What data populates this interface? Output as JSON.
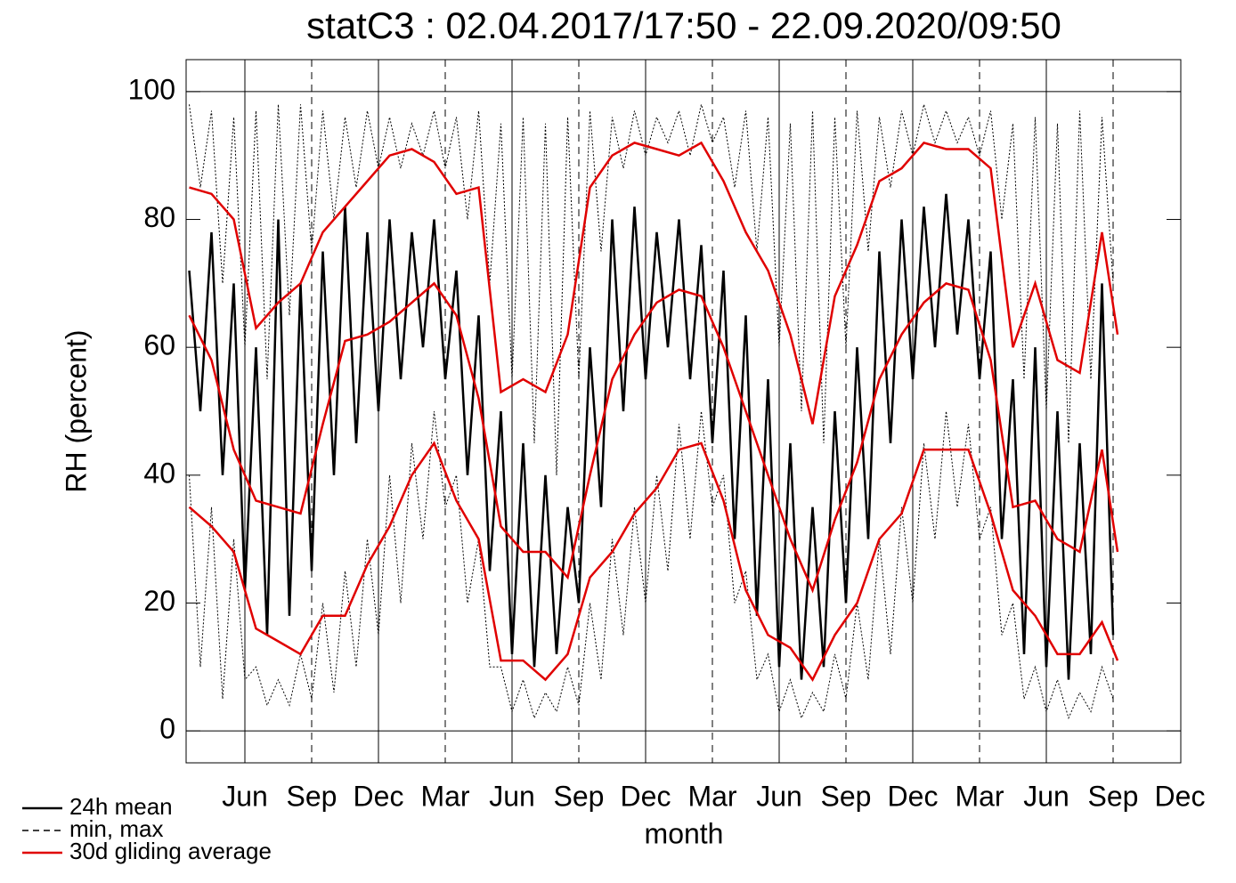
{
  "chart_data": {
    "type": "line",
    "title": "statC3 : 02.04.2017/17:50 - 22.09.2020/09:50",
    "y_label": "RH (percent)",
    "x_label": "month",
    "xlim": [
      2.36,
      47.04
    ],
    "xticks": [
      {
        "value": 5,
        "label": "Jun"
      },
      {
        "value": 8,
        "label": "Sep"
      },
      {
        "value": 11,
        "label": "Dec"
      },
      {
        "value": 14,
        "label": "Mar"
      },
      {
        "value": 17,
        "label": "Jun"
      },
      {
        "value": 20,
        "label": "Sep"
      },
      {
        "value": 23,
        "label": "Dec"
      },
      {
        "value": 26,
        "label": "Mar"
      },
      {
        "value": 29,
        "label": "Jun"
      },
      {
        "value": 32,
        "label": "Sep"
      },
      {
        "value": 35,
        "label": "Dec"
      },
      {
        "value": 38,
        "label": "Mar"
      },
      {
        "value": 41,
        "label": "Jun"
      },
      {
        "value": 44,
        "label": "Sep"
      },
      {
        "value": 47,
        "label": "Dec"
      }
    ],
    "ylim": [
      -5,
      105
    ],
    "yticks": [
      0,
      20,
      40,
      60,
      80,
      100
    ],
    "series": [
      {
        "name": "24h mean",
        "color": "#000000",
        "style": "solid",
        "x": [
          2.5,
          3,
          3.5,
          4,
          4.5,
          5,
          5.5,
          6,
          6.5,
          7,
          7.5,
          8,
          8.5,
          9,
          9.5,
          10,
          10.5,
          11,
          11.5,
          12,
          12.5,
          13,
          13.5,
          14,
          14.5,
          15,
          15.5,
          16,
          16.5,
          17,
          17.5,
          18,
          18.5,
          19,
          19.5,
          20,
          20.5,
          21,
          21.5,
          22,
          22.5,
          23,
          23.5,
          24,
          24.5,
          25,
          25.5,
          26,
          26.5,
          27,
          27.5,
          28,
          28.5,
          29,
          29.5,
          30,
          30.5,
          31,
          31.5,
          32,
          32.5,
          33,
          33.5,
          34,
          34.5,
          35,
          35.5,
          36,
          36.5,
          37,
          37.5,
          38,
          38.5,
          39,
          39.5,
          40,
          40.5,
          41,
          41.5,
          42,
          42.5,
          43,
          43.5,
          44
        ],
        "values": [
          72,
          50,
          78,
          40,
          70,
          22,
          60,
          15,
          80,
          18,
          70,
          25,
          75,
          40,
          82,
          45,
          78,
          50,
          80,
          55,
          78,
          60,
          80,
          55,
          72,
          40,
          65,
          25,
          50,
          12,
          45,
          10,
          40,
          12,
          35,
          20,
          60,
          35,
          80,
          50,
          82,
          55,
          78,
          60,
          80,
          55,
          76,
          45,
          72,
          30,
          65,
          18,
          55,
          10,
          45,
          8,
          35,
          10,
          50,
          20,
          60,
          30,
          75,
          45,
          80,
          55,
          82,
          60,
          84,
          62,
          80,
          55,
          75,
          30,
          55,
          12,
          60,
          10,
          50,
          8,
          45,
          12,
          70,
          15
        ]
      },
      {
        "name": "min, max",
        "color": "#000000",
        "style": "dashed",
        "x": [
          2.5,
          3,
          3.5,
          4,
          4.5,
          5,
          5.5,
          6,
          6.5,
          7,
          7.5,
          8,
          8.5,
          9,
          9.5,
          10,
          10.5,
          11,
          11.5,
          12,
          12.5,
          13,
          13.5,
          14,
          14.5,
          15,
          15.5,
          16,
          16.5,
          17,
          17.5,
          18,
          18.5,
          19,
          19.5,
          20,
          20.5,
          21,
          21.5,
          22,
          22.5,
          23,
          23.5,
          24,
          24.5,
          25,
          25.5,
          26,
          26.5,
          27,
          27.5,
          28,
          28.5,
          29,
          29.5,
          30,
          30.5,
          31,
          31.5,
          32,
          32.5,
          33,
          33.5,
          34,
          34.5,
          35,
          35.5,
          36,
          36.5,
          37,
          37.5,
          38,
          38.5,
          39,
          39.5,
          40,
          40.5,
          41,
          41.5,
          42,
          42.5,
          43,
          43.5,
          44
        ],
        "upper": [
          98,
          85,
          97,
          70,
          96,
          60,
          97,
          55,
          98,
          65,
          98,
          75,
          97,
          80,
          96,
          85,
          97,
          88,
          96,
          88,
          95,
          90,
          97,
          88,
          96,
          80,
          97,
          70,
          95,
          55,
          96,
          45,
          95,
          40,
          96,
          55,
          97,
          75,
          96,
          88,
          97,
          90,
          96,
          92,
          97,
          90,
          98,
          92,
          96,
          85,
          97,
          75,
          96,
          60,
          95,
          50,
          97,
          45,
          96,
          60,
          97,
          75,
          96,
          85,
          97,
          90,
          98,
          92,
          97,
          92,
          96,
          90,
          97,
          80,
          95,
          55,
          96,
          50,
          95,
          45,
          97,
          55,
          96,
          70
        ],
        "lower": [
          40,
          10,
          35,
          5,
          30,
          8,
          10,
          4,
          8,
          4,
          12,
          5,
          20,
          6,
          25,
          10,
          30,
          15,
          40,
          20,
          45,
          30,
          50,
          35,
          40,
          20,
          30,
          10,
          10,
          3,
          8,
          2,
          6,
          3,
          10,
          4,
          20,
          8,
          30,
          15,
          35,
          20,
          40,
          25,
          48,
          30,
          50,
          35,
          40,
          20,
          25,
          8,
          12,
          3,
          8,
          2,
          6,
          3,
          12,
          5,
          20,
          8,
          30,
          12,
          35,
          20,
          45,
          30,
          50,
          35,
          48,
          30,
          35,
          15,
          20,
          5,
          10,
          3,
          8,
          2,
          6,
          3,
          10,
          5
        ]
      },
      {
        "name": "30d gliding average",
        "color": "#e00000",
        "style": "solid",
        "x": [
          2.5,
          3.5,
          4.5,
          5.5,
          6.5,
          7.5,
          8.5,
          9.5,
          10.5,
          11.5,
          12.5,
          13.5,
          14.5,
          15.5,
          16.5,
          17.5,
          18.5,
          19.5,
          20.5,
          21.5,
          22.5,
          23.5,
          24.5,
          25.5,
          26.5,
          27.5,
          28.5,
          29.5,
          30.5,
          31.5,
          32.5,
          33.5,
          34.5,
          35.5,
          36.5,
          37.5,
          38.5,
          39.5,
          40.5,
          41.5,
          42.5,
          43.5,
          44.2
        ],
        "values": [
          65,
          58,
          44,
          36,
          35,
          34,
          48,
          61,
          62,
          64,
          67,
          70,
          65,
          52,
          32,
          28,
          28,
          24,
          40,
          55,
          62,
          67,
          69,
          68,
          60,
          50,
          40,
          30,
          22,
          33,
          42,
          55,
          62,
          67,
          70,
          69,
          58,
          35,
          36,
          30,
          28,
          44,
          28
        ],
        "upper": [
          85,
          84,
          80,
          63,
          67,
          70,
          78,
          82,
          86,
          90,
          91,
          89,
          84,
          85,
          53,
          55,
          53,
          62,
          85,
          90,
          92,
          91,
          90,
          92,
          86,
          78,
          72,
          62,
          48,
          68,
          76,
          86,
          88,
          92,
          91,
          91,
          88,
          60,
          70,
          58,
          56,
          78,
          62
        ],
        "lower": [
          35,
          32,
          28,
          16,
          14,
          12,
          18,
          18,
          26,
          32,
          40,
          45,
          36,
          30,
          11,
          11,
          8,
          12,
          24,
          28,
          34,
          38,
          44,
          45,
          36,
          22,
          15,
          13,
          8,
          15,
          20,
          30,
          34,
          44,
          44,
          44,
          34,
          22,
          18,
          12,
          12,
          17,
          11
        ]
      }
    ]
  }
}
